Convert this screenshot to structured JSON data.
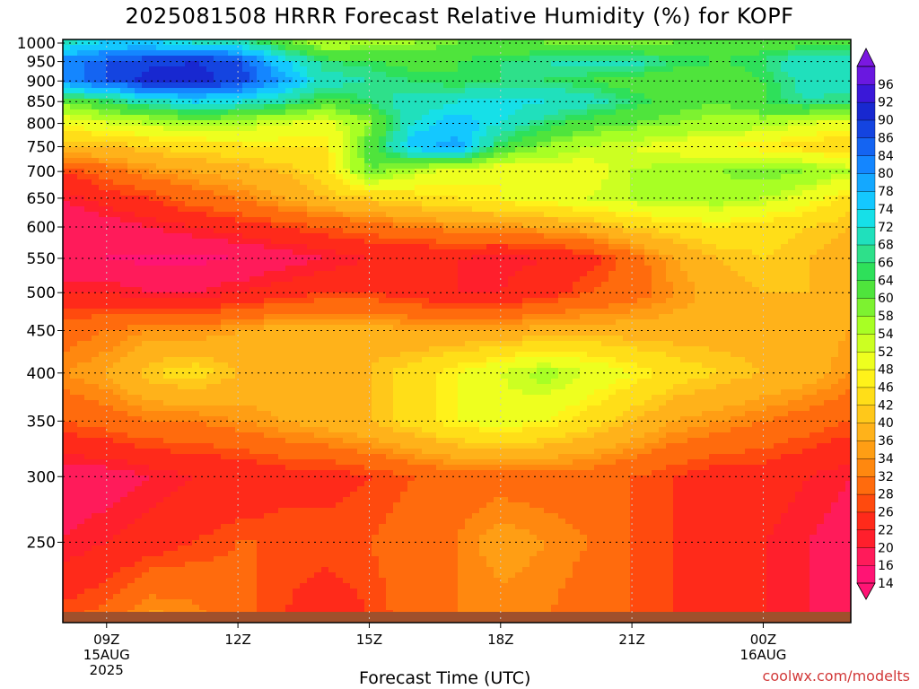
{
  "title": "2025081508 HRRR Forecast Relative Humidity (%) for KOPF",
  "credit": "coolwx.com/modelts",
  "chart_data": {
    "type": "heatmap",
    "title": "2025081508 HRRR Forecast Relative Humidity (%) for KOPF",
    "xlabel": "Forecast Time (UTC)",
    "ylabel": "",
    "x_hours": [
      8,
      9,
      10,
      11,
      12,
      13,
      14,
      15,
      16,
      17,
      18,
      19,
      20,
      21,
      22,
      23,
      24,
      25,
      26
    ],
    "x_ticks": [
      {
        "hour": 9,
        "lines": [
          "09Z",
          "15AUG",
          "2025"
        ]
      },
      {
        "hour": 12,
        "lines": [
          "12Z"
        ]
      },
      {
        "hour": 15,
        "lines": [
          "15Z"
        ]
      },
      {
        "hour": 18,
        "lines": [
          "18Z"
        ]
      },
      {
        "hour": 21,
        "lines": [
          "21Z"
        ]
      },
      {
        "hour": 24,
        "lines": [
          "00Z",
          "16AUG"
        ]
      }
    ],
    "y_levels_hPa": [
      1000,
      950,
      900,
      850,
      800,
      750,
      700,
      650,
      600,
      550,
      500,
      450,
      400,
      350,
      300,
      250,
      200
    ],
    "y_ticks": [
      250,
      300,
      350,
      400,
      450,
      500,
      550,
      600,
      650,
      700,
      750,
      800,
      850,
      900,
      950,
      1000
    ],
    "ylim_hPa": [
      1010,
      200
    ],
    "y_scale": "log",
    "grid": true,
    "values": [
      [
        70,
        75,
        75,
        72,
        70,
        62,
        55,
        56,
        58,
        60,
        60,
        60,
        58,
        58,
        60,
        62,
        62,
        62,
        62
      ],
      [
        82,
        86,
        89,
        90,
        88,
        75,
        66,
        65,
        62,
        64,
        66,
        68,
        70,
        70,
        66,
        64,
        66,
        72,
        72
      ],
      [
        82,
        86,
        92,
        92,
        88,
        80,
        70,
        68,
        66,
        64,
        66,
        66,
        64,
        62,
        60,
        60,
        64,
        70,
        70
      ],
      [
        60,
        65,
        70,
        74,
        72,
        68,
        62,
        66,
        70,
        72,
        74,
        72,
        70,
        66,
        62,
        60,
        64,
        68,
        66
      ],
      [
        48,
        52,
        54,
        56,
        55,
        52,
        50,
        58,
        72,
        76,
        72,
        66,
        62,
        60,
        58,
        56,
        56,
        52,
        50
      ],
      [
        40,
        40,
        42,
        44,
        45,
        46,
        46,
        62,
        76,
        80,
        64,
        58,
        54,
        52,
        50,
        48,
        46,
        44,
        42
      ],
      [
        26,
        30,
        34,
        36,
        38,
        40,
        44,
        60,
        54,
        50,
        48,
        48,
        50,
        54,
        56,
        58,
        60,
        58,
        54
      ],
      [
        20,
        24,
        26,
        30,
        32,
        36,
        40,
        42,
        44,
        46,
        48,
        50,
        52,
        54,
        56,
        56,
        54,
        50,
        44
      ],
      [
        16,
        18,
        20,
        22,
        24,
        26,
        28,
        30,
        32,
        34,
        34,
        36,
        38,
        42,
        44,
        46,
        44,
        42,
        40
      ],
      [
        16,
        16,
        15,
        15,
        16,
        18,
        20,
        22,
        22,
        22,
        21,
        22,
        24,
        30,
        36,
        40,
        42,
        40,
        38
      ],
      [
        22,
        22,
        20,
        20,
        22,
        24,
        26,
        26,
        24,
        22,
        22,
        24,
        28,
        30,
        34,
        38,
        40,
        40,
        36
      ],
      [
        30,
        32,
        34,
        34,
        36,
        38,
        38,
        38,
        36,
        36,
        36,
        38,
        38,
        38,
        38,
        38,
        38,
        38,
        36
      ],
      [
        34,
        36,
        42,
        44,
        40,
        38,
        40,
        40,
        44,
        48,
        52,
        56,
        52,
        48,
        44,
        42,
        40,
        38,
        34
      ],
      [
        28,
        30,
        32,
        32,
        34,
        36,
        38,
        40,
        44,
        48,
        50,
        48,
        44,
        40,
        36,
        34,
        32,
        30,
        28
      ],
      [
        18,
        18,
        20,
        22,
        22,
        24,
        24,
        26,
        28,
        30,
        30,
        30,
        30,
        28,
        26,
        24,
        24,
        22,
        20
      ],
      [
        20,
        22,
        24,
        26,
        28,
        28,
        28,
        28,
        30,
        32,
        36,
        34,
        32,
        28,
        26,
        24,
        22,
        20,
        18
      ],
      [
        28,
        30,
        36,
        34,
        30,
        26,
        22,
        26,
        30,
        32,
        32,
        32,
        30,
        28,
        26,
        24,
        22,
        20,
        20
      ]
    ],
    "colorbar": {
      "values": [
        14,
        16,
        20,
        22,
        26,
        28,
        32,
        34,
        36,
        40,
        42,
        46,
        48,
        52,
        54,
        58,
        60,
        64,
        66,
        68,
        72,
        74,
        78,
        80,
        84,
        86,
        90,
        92,
        96
      ],
      "colors": [
        "#ff1474",
        "#ff1b5a",
        "#ff1f2c",
        "#ff2a1a",
        "#ff4a0e",
        "#ff6b0d",
        "#ff880f",
        "#ff9e14",
        "#ffb21a",
        "#ffc81a",
        "#ffde18",
        "#fff21a",
        "#eeff1f",
        "#ccff22",
        "#a8ff24",
        "#7df230",
        "#4fe43c",
        "#2ee05a",
        "#2ee08a",
        "#20e0bc",
        "#16e0e8",
        "#14c8ff",
        "#14a8ff",
        "#1486ff",
        "#1464f2",
        "#1444e0",
        "#1828d0",
        "#3a18d8",
        "#6a18e0"
      ]
    }
  }
}
